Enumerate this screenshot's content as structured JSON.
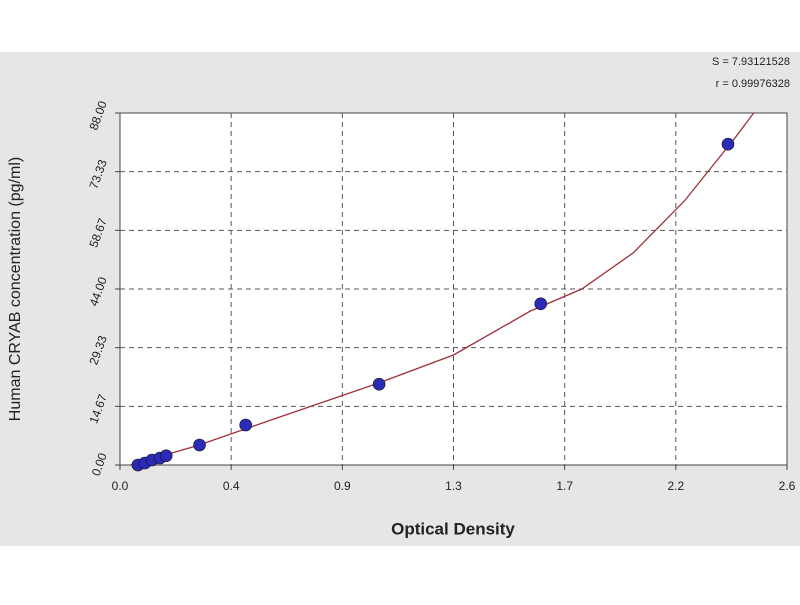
{
  "chart_data": {
    "type": "scatter",
    "x_label": "Optical Density",
    "y_label": "Human CRYAB concentration (pg/ml)",
    "annotations": [
      "S = 7.93121528",
      "r = 0.99976328"
    ],
    "xlim": [
      0,
      2.6
    ],
    "ylim": [
      0,
      88
    ],
    "xticks": [
      {
        "value": 0,
        "label": "0.0"
      },
      {
        "value": 0.4333,
        "label": "0.4"
      },
      {
        "value": 0.8667,
        "label": "0.9"
      },
      {
        "value": 1.3,
        "label": "1.3"
      },
      {
        "value": 1.7333,
        "label": "1.7"
      },
      {
        "value": 2.1667,
        "label": "2.2"
      },
      {
        "value": 2.6,
        "label": "2.6"
      }
    ],
    "yticks": [
      {
        "value": 0,
        "label": "0.00"
      },
      {
        "value": 14.667,
        "label": "14.67"
      },
      {
        "value": 29.333,
        "label": "29.33"
      },
      {
        "value": 44,
        "label": "44.00"
      },
      {
        "value": 58.667,
        "label": "58.67"
      },
      {
        "value": 73.333,
        "label": "73.33"
      },
      {
        "value": 88,
        "label": "88.00"
      }
    ],
    "grid": true,
    "points": {
      "color": "#2b2bb8",
      "x": [
        0.07,
        0.097,
        0.125,
        0.156,
        0.18,
        0.31,
        0.49,
        1.01,
        1.64,
        2.37
      ],
      "y": [
        0,
        0.5,
        1.25,
        1.75,
        2.3,
        5,
        10,
        20.2,
        40.3,
        80.2
      ]
    },
    "curve": {
      "color": "#a0303a",
      "x": [
        0.04,
        0.3,
        0.6,
        1.0,
        1.3,
        1.6,
        1.8,
        2.0,
        2.2,
        2.4,
        2.47
      ],
      "y": [
        0,
        4.8,
        11.5,
        20.3,
        27.5,
        38.5,
        44,
        53,
        66,
        82,
        88
      ]
    }
  }
}
